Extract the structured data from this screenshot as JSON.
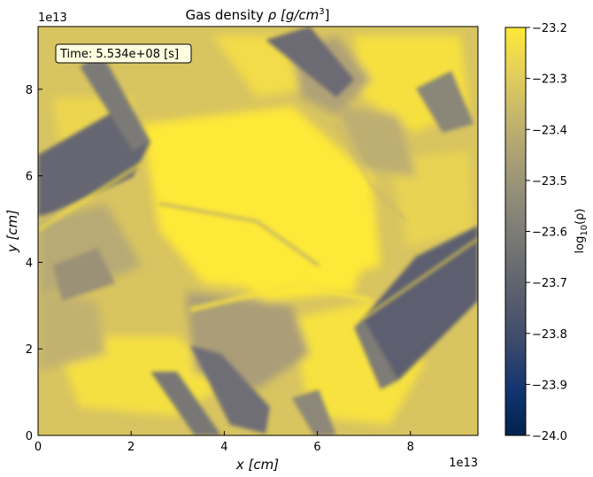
{
  "chart_data": {
    "type": "heatmap",
    "title": "Gas density",
    "title_symbol": "ρ",
    "title_unit": "[g/cm",
    "title_unit_exp": "3",
    "title_unit_close": "]",
    "xlabel": "x",
    "xlabel_unit": "[cm]",
    "ylabel": "y",
    "ylabel_unit": "[cm]",
    "x_offset_label": "1e13",
    "y_offset_label": "1e13",
    "xlim": [
      0,
      9.45
    ],
    "ylim": [
      0,
      9.45
    ],
    "x_ticks": [
      0,
      2,
      4,
      6,
      8
    ],
    "y_ticks": [
      0,
      2,
      4,
      6,
      8
    ],
    "annotation": "Time: 5.534e+08 [s]",
    "colorbar": {
      "label_base": "log",
      "label_sub": "10",
      "label_arg": "(ρ)",
      "vmin": -24.0,
      "vmax": -23.2,
      "ticks": [
        "-23.2",
        "-23.3",
        "-23.4",
        "-23.5",
        "-23.6",
        "-23.7",
        "-23.8",
        "-23.9",
        "-24.0"
      ],
      "tick_values": [
        -23.2,
        -23.3,
        -23.4,
        -23.5,
        -23.6,
        -23.7,
        -23.8,
        -23.9,
        -24.0
      ],
      "colormap": "cividis",
      "colormap_stops": [
        "#00224e",
        "#123570",
        "#3b496c",
        "#575d6d",
        "#707173",
        "#8a8779",
        "#a69d75",
        "#c4b56c",
        "#e4cf5b",
        "#fee838"
      ]
    }
  }
}
